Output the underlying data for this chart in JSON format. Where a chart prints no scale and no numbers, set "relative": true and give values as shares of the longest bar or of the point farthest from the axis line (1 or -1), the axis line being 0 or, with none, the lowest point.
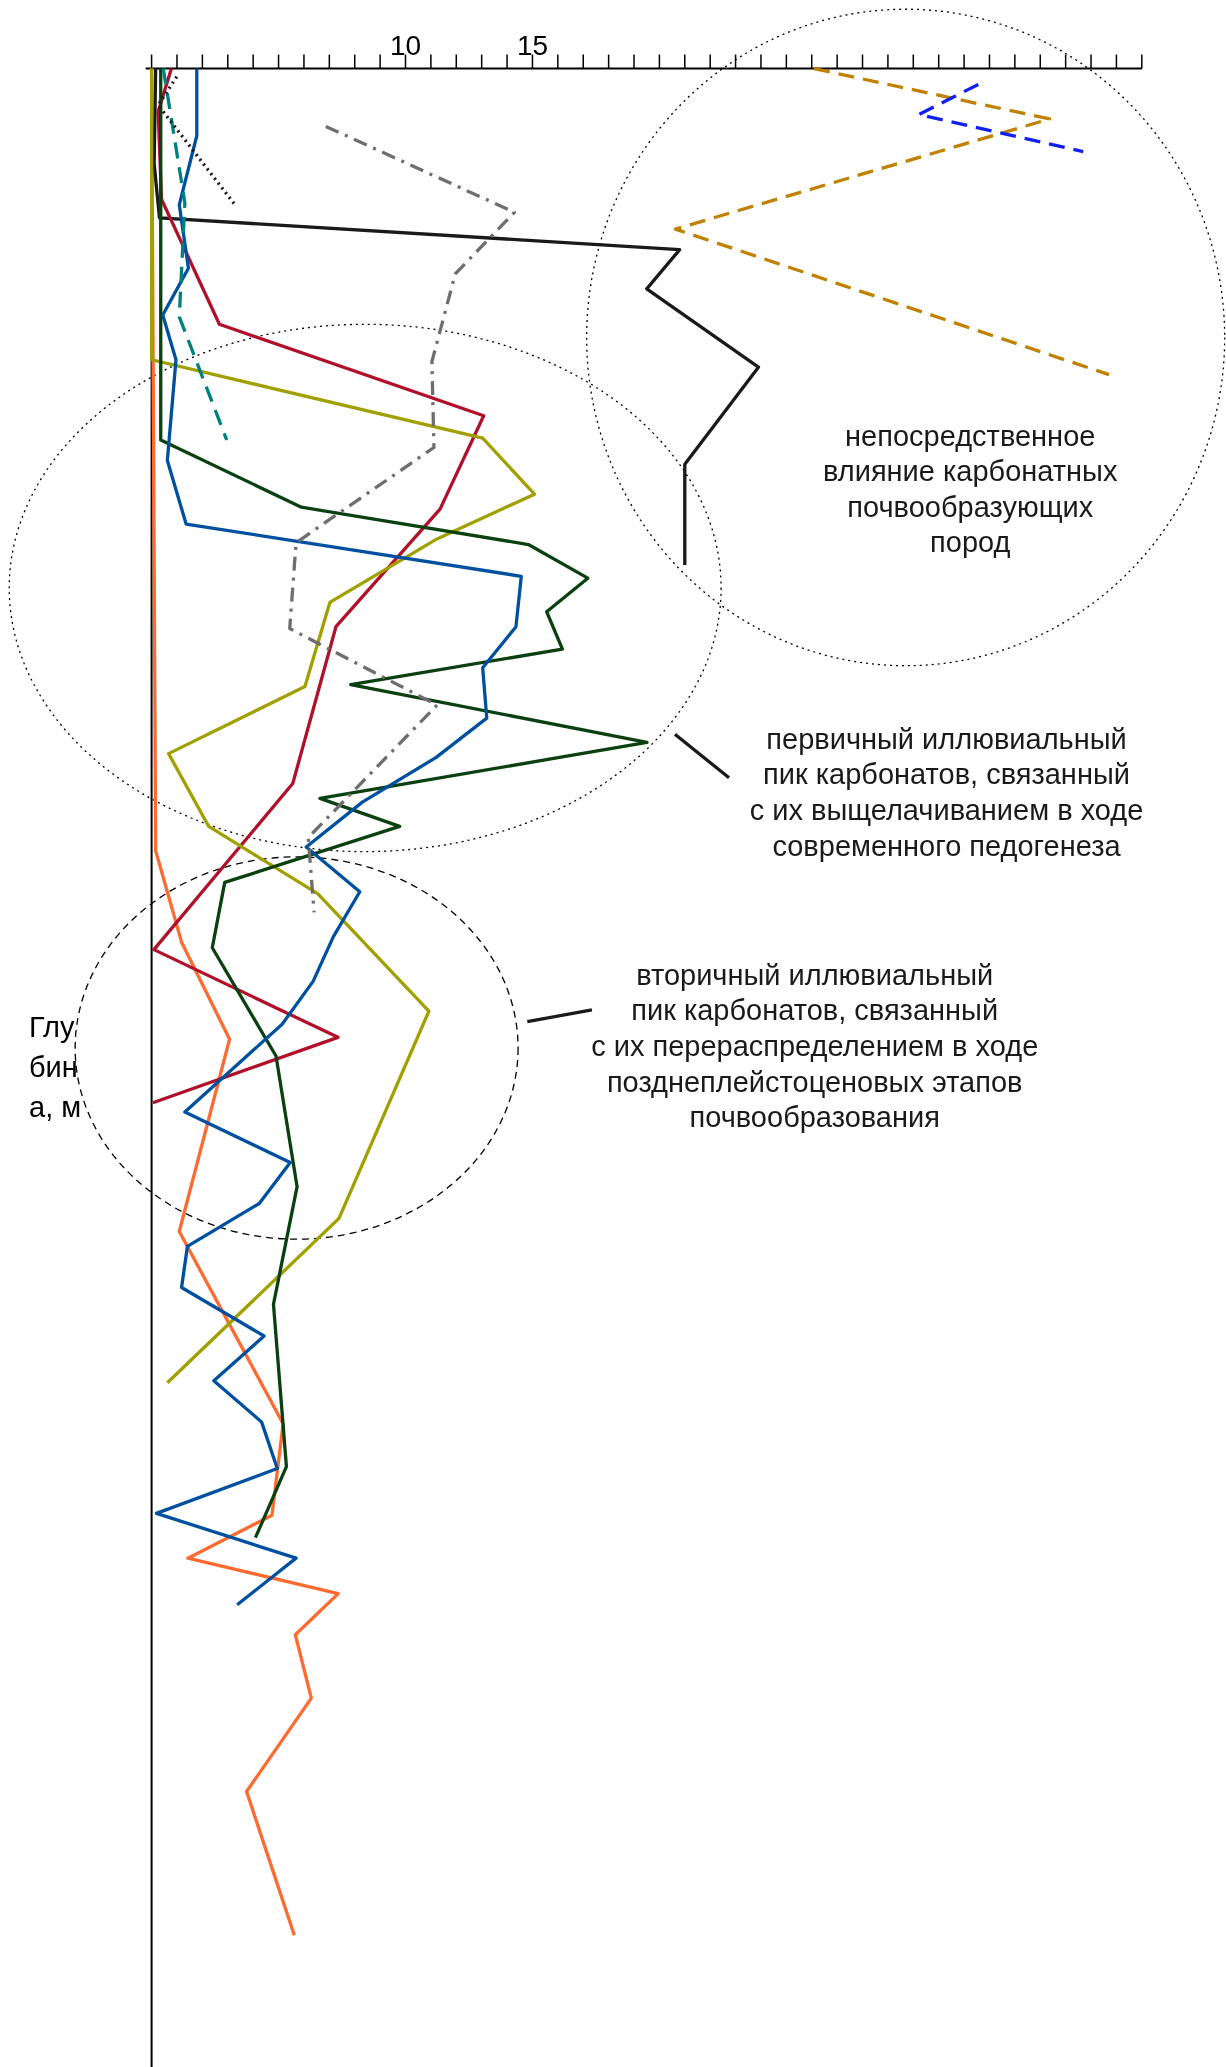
{
  "chart_data": {
    "type": "line",
    "relative": true,
    "ylabel": "Глубина, м",
    "marker": "none",
    "xlim": [
      0,
      39
    ],
    "xticks": [
      {
        "value": 0,
        "label": null
      },
      {
        "value": 1,
        "label": null
      },
      {
        "value": 2,
        "label": null
      },
      {
        "value": 3,
        "label": null
      },
      {
        "value": 4,
        "label": null
      },
      {
        "value": 5,
        "label": null
      },
      {
        "value": 6,
        "label": null
      },
      {
        "value": 7,
        "label": null
      },
      {
        "value": 8,
        "label": null
      },
      {
        "value": 9,
        "label": null
      },
      10,
      {
        "value": 11,
        "label": null
      },
      {
        "value": 12,
        "label": null
      },
      {
        "value": 13,
        "label": null
      },
      {
        "value": 14,
        "label": null
      },
      15,
      {
        "value": 16,
        "label": null
      },
      {
        "value": 17,
        "label": null
      },
      {
        "value": 18,
        "label": null
      },
      {
        "value": 19,
        "label": null
      },
      {
        "value": 20,
        "label": null
      },
      {
        "value": 21,
        "label": null
      },
      {
        "value": 22,
        "label": null
      },
      {
        "value": 23,
        "label": null
      },
      {
        "value": 24,
        "label": null
      },
      {
        "value": 25,
        "label": null
      },
      {
        "value": 26,
        "label": null
      },
      {
        "value": 27,
        "label": null
      },
      {
        "value": 28,
        "label": null
      },
      {
        "value": 29,
        "label": null
      },
      {
        "value": 30,
        "label": null
      },
      {
        "value": 31,
        "label": null
      },
      {
        "value": 32,
        "label": null
      },
      {
        "value": 33,
        "label": null
      },
      {
        "value": 34,
        "label": null
      },
      {
        "value": 35,
        "label": null
      },
      {
        "value": 36,
        "label": null
      },
      {
        "value": 37,
        "label": null
      },
      {
        "value": 38,
        "label": null
      },
      {
        "value": 39,
        "label": null
      }
    ],
    "annotations": [
      "непосредственное\nвлияние карбонатных\nпочвообразующих\nпород",
      "первичный иллювиальный\nпик карбонатов, связанный\nс их выщелачиванием в ходе\nсовременного педогенеза",
      "вторичный иллювиальный\nпик карбонатов, связанный\nс их перераспределением в ходе\nпозднеплейстоценовых этапов\nпочвообразования"
    ],
    "series": [
      {
        "color": "#ff6a30",
        "line_style": "solid",
        "x": [
          0,
          0.16,
          1.18,
          3.07,
          1.09,
          5.18,
          4.74,
          1.43,
          7.35,
          5.66,
          6.29,
          3.74,
          5.62
        ],
        "values": [
          0,
          -0.419,
          -0.468,
          -0.52,
          -0.623,
          -0.726,
          -0.775,
          -0.798,
          -0.817,
          -0.839,
          -0.873,
          -0.923,
          -1
        ]
      },
      {
        "color": "#1a1a1a",
        "line_style": "solid",
        "x": [
          0.16,
          0.1,
          0.31,
          20.8,
          19.5,
          23.9,
          21.0,
          21.0
        ],
        "values": [
          0,
          -0.051,
          -0.08,
          -0.097,
          -0.118,
          -0.16,
          -0.212,
          -0.266
        ]
      },
      {
        "color": "#b0102a",
        "line_style": "solid",
        "x": [
          0.78,
          0.26,
          0.39,
          2.67,
          13.08,
          11.36,
          7.26,
          5.56,
          0.09,
          7.34,
          0.05
        ],
        "values": [
          0,
          -0.023,
          -0.07,
          -0.137,
          -0.186,
          -0.236,
          -0.299,
          -0.383,
          -0.472,
          -0.519,
          -0.554
        ]
      },
      {
        "color": "#a0a000",
        "line_style": "solid",
        "x": [
          0,
          0,
          13.04,
          15.08,
          11.24,
          7.02,
          6.04,
          0.67,
          2.25,
          6.54,
          10.92,
          7.38,
          0.62
        ],
        "values": [
          0,
          -0.156,
          -0.198,
          -0.228,
          -0.252,
          -0.286,
          -0.331,
          -0.367,
          -0.406,
          -0.442,
          -0.505,
          -0.616,
          -0.704
        ]
      },
      {
        "color": "#0b4010",
        "line_style": "solid",
        "x": [
          0.36,
          0.36,
          5.9,
          14.84,
          17.18,
          15.56,
          16.18,
          7.84,
          19.51,
          6.63,
          9.77,
          2.88,
          2.39,
          4.9,
          5.73,
          4.8,
          5.31,
          4.09
        ],
        "values": [
          0,
          -0.199,
          -0.235,
          -0.255,
          -0.273,
          -0.291,
          -0.311,
          -0.33,
          -0.361,
          -0.391,
          -0.406,
          -0.436,
          -0.471,
          -0.529,
          -0.599,
          -0.662,
          -0.749,
          -0.787
        ]
      },
      {
        "color": "#0050a0",
        "line_style": "solid",
        "x": [
          1.78,
          1.78,
          1.09,
          1.45,
          0.44,
          0.96,
          0.62,
          1.36,
          14.56,
          14.35,
          13.04,
          13.2,
          11.21,
          8.3,
          6.09,
          8.2,
          7.16,
          6.36,
          5.14,
          1.31,
          5.46,
          4.24,
          1.41,
          1.18,
          4.43,
          2.45,
          4.33,
          4.95,
          0.19,
          5.69,
          3.37
        ],
        "values": [
          0,
          -0.036,
          -0.073,
          -0.107,
          -0.132,
          -0.156,
          -0.21,
          -0.244,
          -0.272,
          -0.299,
          -0.321,
          -0.348,
          -0.369,
          -0.393,
          -0.417,
          -0.441,
          -0.465,
          -0.489,
          -0.512,
          -0.559,
          -0.586,
          -0.608,
          -0.631,
          -0.653,
          -0.679,
          -0.703,
          -0.725,
          -0.75,
          -0.774,
          -0.798,
          -0.823
        ]
      },
      {
        "color": "#6e6e6e",
        "line_style": "dashdot",
        "x": [
          6.86,
          14.29,
          11.96,
          11.04,
          11.12,
          5.69,
          5.44,
          11.24,
          6.17,
          6.4
        ],
        "values": [
          -0.031,
          -0.077,
          -0.11,
          -0.157,
          -0.203,
          -0.254,
          -0.3,
          -0.341,
          -0.412,
          -0.452
        ]
      },
      {
        "color": "#008080",
        "line_style": "dashed",
        "x": [
          0.46,
          1.31,
          1.09,
          2.96
        ],
        "values": [
          0,
          -0.072,
          -0.133,
          -0.199
        ]
      },
      {
        "color": "#c08000",
        "line_style": "dashed",
        "x": [
          26.09,
          35.37,
          20.63,
          37.71
        ],
        "values": [
          0,
          -0.027,
          -0.086,
          -0.164
        ]
      },
      {
        "color": "#1020f0",
        "line_style": "dashed",
        "x": [
          32.56,
          30.22,
          36.69
        ],
        "values": [
          -0.0085,
          -0.0246,
          -0.0445
        ]
      },
      {
        "color": "#1a1a1a",
        "line_style": "dotted",
        "x": [
          0.99,
          0.26,
          3.29
        ],
        "values": [
          -0.0044,
          -0.0196,
          -0.0731
        ]
      }
    ]
  }
}
